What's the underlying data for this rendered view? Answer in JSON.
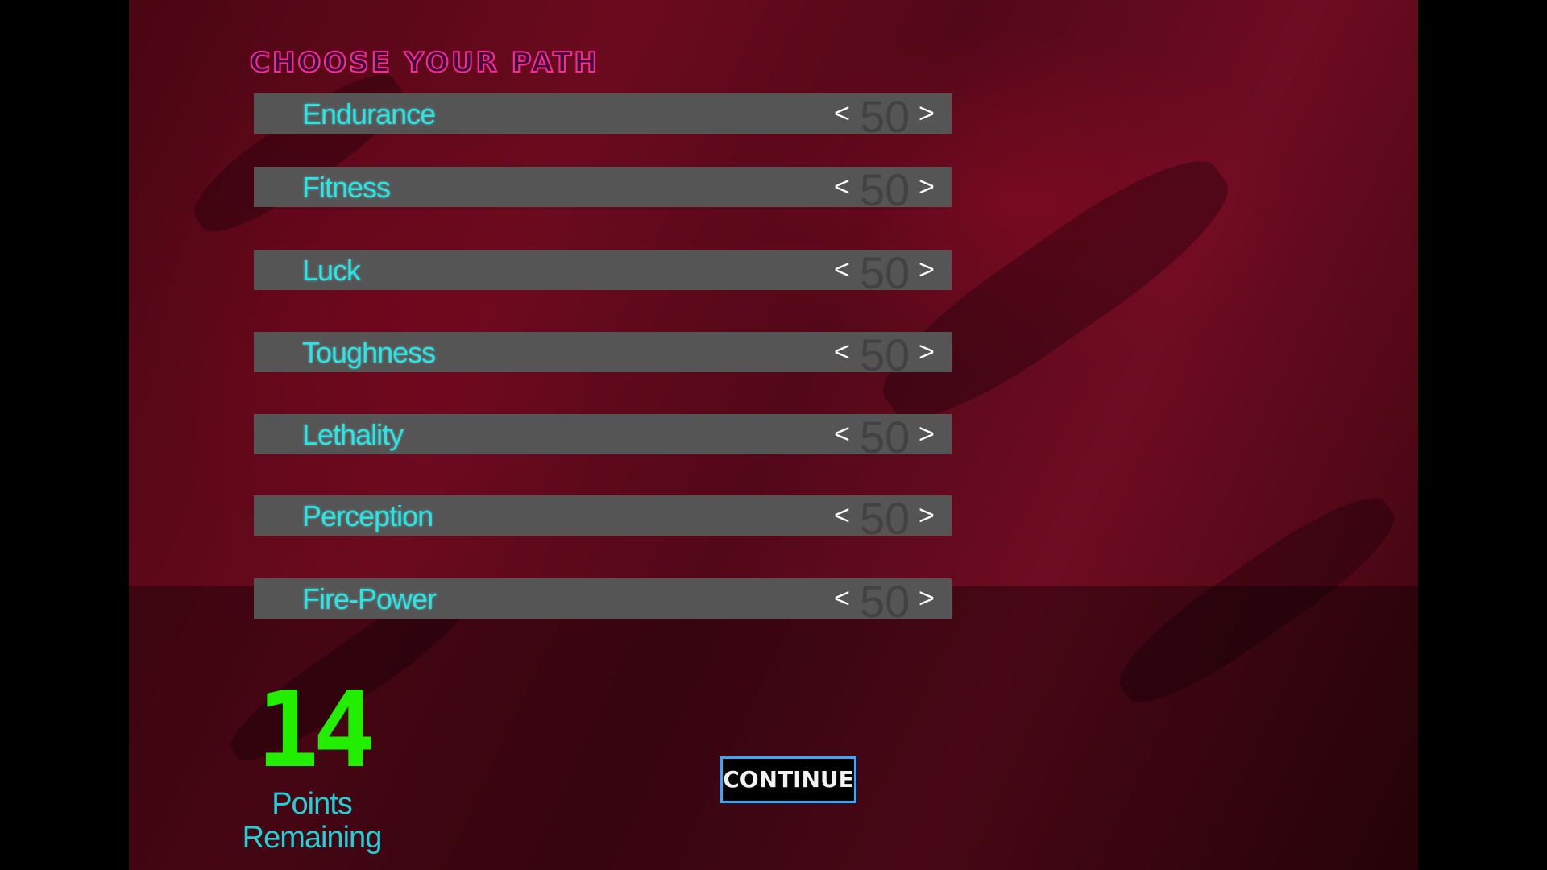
{
  "title": "CHOOSE YOUR PATH",
  "stats": [
    {
      "label": "Endurance",
      "value": "50"
    },
    {
      "label": "Fitness",
      "value": "50"
    },
    {
      "label": "Luck",
      "value": "50"
    },
    {
      "label": "Toughness",
      "value": "50"
    },
    {
      "label": "Lethality",
      "value": "50"
    },
    {
      "label": "Perception",
      "value": "50"
    },
    {
      "label": "Fire-Power",
      "value": "50"
    }
  ],
  "controls": {
    "decrease": "<",
    "increase": ">"
  },
  "points": {
    "value": "14",
    "label_line1": "Points",
    "label_line2": "Remaining"
  },
  "continue_label": "CONTINUE",
  "colors": {
    "label": "#22e8e8",
    "points": "#22ee00",
    "button_border": "#33aaff",
    "title_outline": "#ff2a8a"
  }
}
